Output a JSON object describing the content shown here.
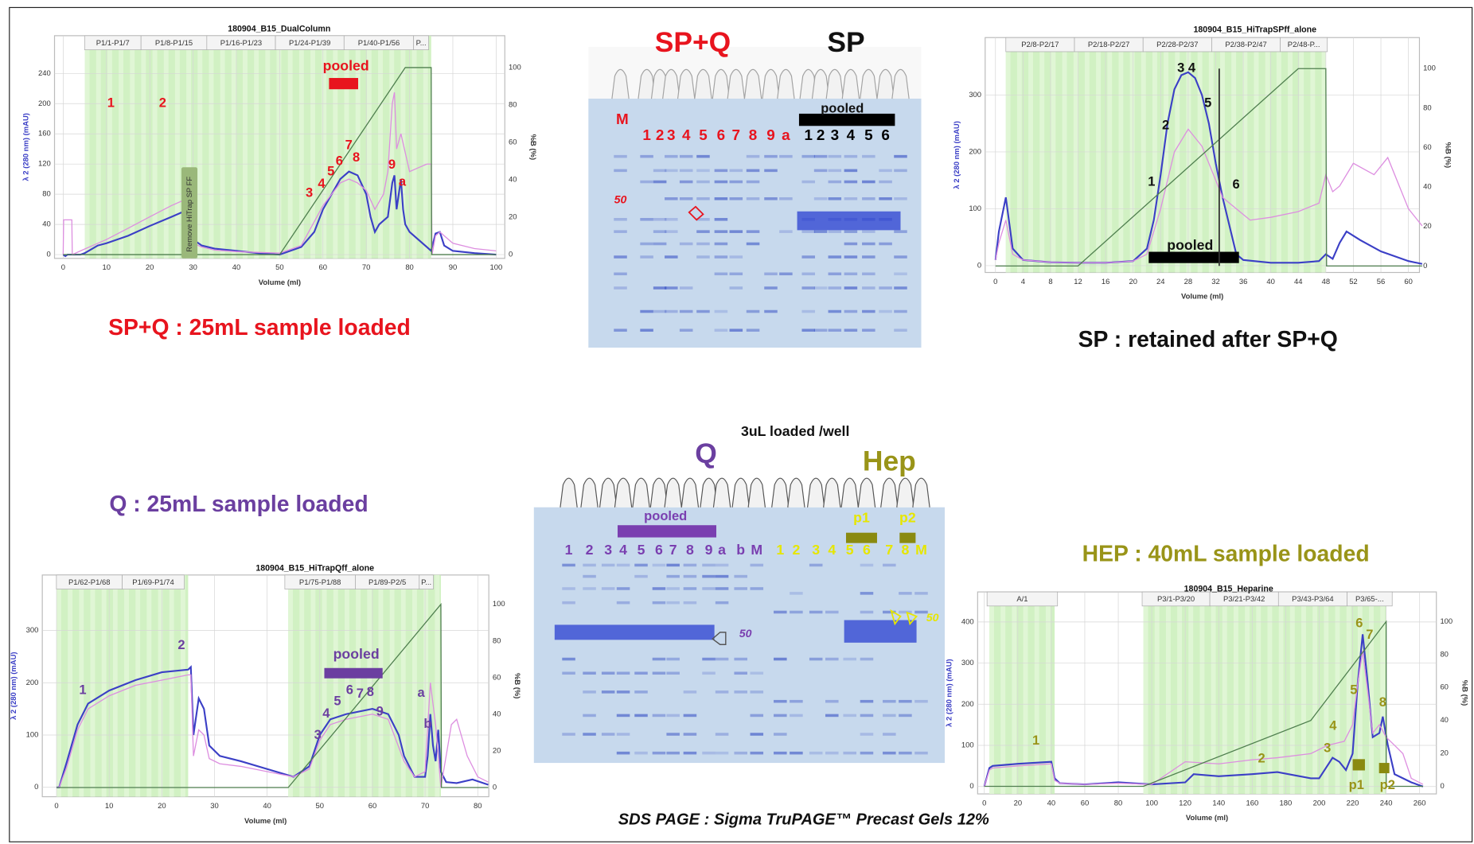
{
  "chart_data": [
    {
      "type": "line",
      "title": "180904_B15_DualColumn",
      "xlabel": "Volume (ml)",
      "ylabel": "λ 2 (280 nm) (mAU)",
      "y2label": "%B (%)",
      "caption": "SP+Q : 25mL sample loaded",
      "fraction_headers": [
        "P1/1-P1/7",
        "P1/8-P1/15",
        "P1/16-P1/23",
        "P1/24-P1/39",
        "P1/40-P1/56",
        "P..."
      ],
      "regions": [
        [
          5,
          85
        ]
      ],
      "xlim": [
        -2,
        102
      ],
      "ylim": [
        -5,
        290
      ],
      "y2lim": [
        -2,
        117
      ],
      "xticks": [
        0,
        10,
        20,
        30,
        40,
        50,
        60,
        70,
        80,
        90,
        100
      ],
      "yticks": [
        0,
        40,
        80,
        120,
        160,
        200,
        240
      ],
      "y2ticks": [
        0,
        20,
        40,
        60,
        80,
        100
      ],
      "grid": true,
      "series": [
        {
          "color": "#3b3fc6",
          "x": [
            0,
            0.5,
            1,
            2,
            4,
            5,
            8,
            10,
            15,
            20,
            25,
            29,
            30,
            32,
            35,
            40,
            45,
            50,
            55,
            58,
            60,
            62,
            64,
            66,
            68,
            70,
            71,
            72,
            73,
            74,
            75,
            76,
            76.5,
            77,
            78,
            78.5,
            79,
            80,
            82,
            84,
            85,
            86,
            87,
            88,
            90,
            95,
            100
          ],
          "values": [
            0,
            -2,
            0,
            0,
            0,
            2,
            12,
            15,
            25,
            38,
            50,
            60,
            20,
            12,
            8,
            5,
            2,
            0,
            10,
            30,
            60,
            80,
            100,
            110,
            105,
            80,
            50,
            30,
            40,
            45,
            50,
            95,
            105,
            60,
            100,
            60,
            40,
            30,
            20,
            10,
            5,
            28,
            30,
            12,
            5,
            2,
            0
          ]
        },
        {
          "color": "#dd8ee0",
          "x": [
            0,
            0.1,
            2,
            2.1,
            4,
            8,
            10,
            15,
            20,
            25,
            29,
            30,
            32,
            35,
            40,
            50,
            55,
            60,
            62,
            64,
            66,
            68,
            70,
            72,
            74,
            75,
            76,
            76.5,
            77,
            78,
            80,
            82,
            84,
            85,
            85.2,
            86,
            87,
            90,
            95,
            100
          ],
          "values": [
            0,
            46,
            46,
            0,
            5,
            15,
            20,
            35,
            50,
            65,
            75,
            15,
            10,
            6,
            4,
            2,
            12,
            65,
            80,
            95,
            100,
            95,
            85,
            60,
            80,
            110,
            200,
            215,
            140,
            160,
            110,
            115,
            120,
            120,
            0,
            25,
            30,
            15,
            8,
            5
          ]
        },
        {
          "color": "#4f7f4f",
          "axis": "y2",
          "x": [
            0,
            50,
            79,
            85,
            85.1,
            100
          ],
          "values": [
            0,
            0,
            100,
            100,
            0,
            0
          ]
        }
      ],
      "annotations": [
        "1",
        "2",
        "3",
        "4",
        "5",
        "6",
        "7",
        "8",
        "9",
        "a",
        "pooled",
        "Remove HiTrap SP FF"
      ]
    },
    {
      "type": "line",
      "title": "180904_B15_HiTrapSPff_alone",
      "xlabel": "Volume (ml)",
      "ylabel": "λ 2 (280 nm) (mAU)",
      "y2label": "%B (%)",
      "caption": "SP : retained after SP+Q",
      "fraction_headers": [
        "P2/8-P2/17",
        "P2/18-P2/27",
        "P2/28-P2/37",
        "P2/38-P2/47",
        "P2/48-P..."
      ],
      "regions": [
        [
          1.5,
          48
        ]
      ],
      "xlim": [
        -1.5,
        61.6
      ],
      "ylim": [
        -12,
        401
      ],
      "y2lim": [
        -3.3,
        115.7
      ],
      "xticks": [
        0,
        4,
        8,
        12,
        16,
        20,
        24,
        28,
        32,
        36,
        40,
        44,
        48,
        52,
        56,
        60
      ],
      "yticks": [
        0,
        100,
        200,
        300
      ],
      "y2ticks": [
        0,
        20,
        40,
        60,
        80,
        100
      ],
      "grid": true,
      "series": [
        {
          "color": "#3b3fc6",
          "x": [
            0,
            0.5,
            1.5,
            2.5,
            4,
            8,
            12,
            16,
            20,
            22,
            23,
            24,
            25,
            26,
            27,
            28,
            29,
            30,
            31,
            32,
            33,
            34,
            35,
            36,
            40,
            44,
            47,
            48,
            49,
            50,
            51,
            53,
            56,
            60,
            62
          ],
          "values": [
            10,
            60,
            120,
            30,
            10,
            6,
            5,
            5,
            8,
            30,
            80,
            160,
            250,
            310,
            335,
            340,
            330,
            300,
            250,
            180,
            120,
            70,
            20,
            10,
            5,
            5,
            8,
            20,
            12,
            40,
            60,
            45,
            25,
            8,
            3
          ]
        },
        {
          "color": "#dd8ee0",
          "x": [
            0,
            0.5,
            1.5,
            2.5,
            4,
            8,
            12,
            16,
            20,
            22,
            24,
            26,
            28,
            30,
            32,
            33,
            34,
            37,
            40,
            44,
            47,
            48,
            49,
            50,
            52,
            55,
            57,
            60,
            62
          ],
          "values": [
            10,
            40,
            80,
            20,
            10,
            6,
            5,
            5,
            8,
            20,
            100,
            200,
            240,
            210,
            150,
            120,
            110,
            80,
            85,
            95,
            110,
            160,
            130,
            140,
            180,
            160,
            190,
            100,
            70
          ]
        },
        {
          "color": "#4f7f4f",
          "axis": "y2",
          "x": [
            0,
            12,
            44,
            48,
            48.1,
            62
          ],
          "values": [
            0,
            0,
            100,
            100,
            0,
            0
          ]
        }
      ],
      "annotations": [
        "1",
        "2",
        "3 4",
        "5",
        "6",
        "pooled"
      ]
    },
    {
      "type": "line",
      "title": "180904_B15_HiTrapQff_alone",
      "xlabel": "Volume (ml)",
      "ylabel": "λ 2 (280 nm) (mAU)",
      "y2label": "%B (%)",
      "caption": "Q : 25mL sample loaded",
      "fraction_headers": [
        "P1/62-P1/68",
        "P1/69-P1/74",
        "P1/75-P1/88",
        "P1/89-P2/5",
        "P..."
      ],
      "regions": [
        [
          0,
          25
        ],
        [
          44,
          73
        ]
      ],
      "xlim": [
        -2.7,
        82.1
      ],
      "ylim": [
        -18,
        406
      ],
      "y2lim": [
        -5,
        116
      ],
      "xticks": [
        0,
        10,
        20,
        30,
        40,
        50,
        60,
        70,
        80
      ],
      "yticks": [
        0,
        100,
        200,
        300
      ],
      "y2ticks": [
        0,
        20,
        40,
        60,
        80,
        100
      ],
      "grid": true,
      "series": [
        {
          "color": "#3b3fc6",
          "x": [
            0,
            0.5,
            2,
            4,
            6,
            10,
            15,
            20,
            25,
            25.5,
            26,
            27,
            28,
            29,
            31,
            35,
            40,
            45,
            48,
            50,
            52,
            55,
            60,
            63,
            65,
            66,
            68,
            70,
            70.5,
            71,
            71.5,
            72,
            72.5,
            73,
            74,
            76,
            79,
            82
          ],
          "values": [
            0,
            0,
            50,
            120,
            160,
            185,
            205,
            220,
            225,
            230,
            100,
            170,
            150,
            80,
            60,
            50,
            35,
            20,
            40,
            100,
            130,
            140,
            150,
            140,
            100,
            60,
            20,
            20,
            60,
            140,
            80,
            50,
            110,
            30,
            10,
            8,
            15,
            5
          ]
        },
        {
          "color": "#dd8ee0",
          "x": [
            0,
            0.5,
            2,
            4,
            6,
            10,
            15,
            20,
            25,
            25.5,
            26,
            27,
            28,
            29,
            31,
            35,
            40,
            45,
            48,
            50,
            52,
            55,
            60,
            63,
            66,
            68,
            70,
            71,
            72,
            73,
            74,
            75,
            76,
            78,
            80,
            82
          ],
          "values": [
            0,
            0,
            40,
            110,
            150,
            175,
            195,
            205,
            215,
            215,
            60,
            110,
            100,
            55,
            45,
            40,
            30,
            20,
            35,
            90,
            120,
            130,
            140,
            130,
            50,
            20,
            30,
            200,
            120,
            0,
            60,
            120,
            130,
            60,
            20,
            10
          ]
        },
        {
          "color": "#4f7f4f",
          "axis": "y2",
          "x": [
            0,
            44,
            73,
            73.1,
            82
          ],
          "values": [
            0,
            0,
            100,
            0,
            0
          ]
        }
      ],
      "annotations": [
        "1",
        "2",
        "3",
        "4",
        "5",
        "6",
        "7",
        "8",
        "9",
        "a",
        "b",
        "pooled"
      ]
    },
    {
      "type": "line",
      "title": "180904_B15_Heparine",
      "xlabel": "Volume (ml)",
      "ylabel": "λ 2 (280 nm) (mAU)",
      "y2label": "%B (%)",
      "caption": "HEP : 40mL sample loaded",
      "fraction_headers": [
        "A/1",
        "P3/1-P3/20",
        "P3/21-P3/42",
        "P3/43-P3/64",
        "P3/65-..."
      ],
      "regions": [
        [
          3,
          42
        ],
        [
          95,
          240
        ]
      ],
      "xlim": [
        -4,
        270
      ],
      "ylim": [
        -18,
        473
      ],
      "y2lim": [
        -4.6,
        118
      ],
      "xticks": [
        0,
        20,
        40,
        60,
        80,
        100,
        120,
        140,
        160,
        180,
        200,
        220,
        240,
        260
      ],
      "yticks": [
        0,
        100,
        200,
        300,
        400
      ],
      "y2ticks": [
        0,
        20,
        40,
        60,
        80,
        100
      ],
      "grid": true,
      "series": [
        {
          "color": "#3b3fc6",
          "x": [
            0,
            3,
            5,
            20,
            40,
            42,
            45,
            60,
            80,
            100,
            120,
            125,
            140,
            160,
            175,
            195,
            200,
            208,
            212,
            216,
            220,
            223,
            226,
            229,
            232,
            236,
            238,
            241,
            245,
            255,
            262
          ],
          "values": [
            0,
            45,
            50,
            55,
            60,
            20,
            8,
            5,
            10,
            5,
            10,
            30,
            25,
            30,
            35,
            20,
            20,
            70,
            60,
            40,
            80,
            250,
            370,
            250,
            120,
            130,
            170,
            100,
            30,
            10,
            0
          ]
        },
        {
          "color": "#dd8ee0",
          "x": [
            0,
            3,
            5,
            20,
            40,
            42,
            45,
            60,
            80,
            100,
            120,
            140,
            160,
            175,
            195,
            205,
            215,
            220,
            223,
            226,
            229,
            232,
            236,
            240,
            245,
            250,
            255,
            262
          ],
          "values": [
            0,
            40,
            45,
            50,
            55,
            15,
            8,
            5,
            8,
            5,
            60,
            55,
            65,
            70,
            80,
            100,
            110,
            150,
            250,
            330,
            230,
            130,
            150,
            120,
            100,
            80,
            20,
            5
          ]
        },
        {
          "color": "#4f7f4f",
          "axis": "y2",
          "x": [
            0,
            95,
            195,
            240,
            240.1,
            262
          ],
          "values": [
            0,
            0,
            40,
            100,
            0,
            0
          ]
        }
      ],
      "annotations": [
        "1",
        "2",
        "3",
        "4",
        "5",
        "6",
        "7",
        "8",
        "p1",
        "p2"
      ]
    }
  ],
  "gels": {
    "note": "3uL loaded /well",
    "caption": "SDS PAGE : Sigma TruPAGE™ Precast  Gels 12%",
    "top": {
      "title_spq": "SP+Q",
      "title_sp": "SP",
      "marker": "M",
      "lanes_spq": [
        "1",
        "2",
        "3",
        "4",
        "5",
        "6",
        "7",
        "8",
        "9",
        "a"
      ],
      "lanes_sp": [
        "1",
        "2",
        "3",
        "4",
        "5",
        "6"
      ],
      "pooled": "pooled",
      "marker_size": "50"
    },
    "q": {
      "title": "Q",
      "lanes": [
        "1",
        "2",
        "3",
        "4",
        "5",
        "6",
        "7",
        "8",
        "9",
        "a",
        "b",
        "M"
      ],
      "pooled": "pooled",
      "marker_size": "50"
    },
    "hep": {
      "title": "Hep",
      "lanes": [
        "1",
        "2",
        "3",
        "4",
        "5",
        "6",
        "7",
        "8",
        "M"
      ],
      "pools": [
        "p1",
        "p2"
      ],
      "marker_size": "50"
    }
  }
}
